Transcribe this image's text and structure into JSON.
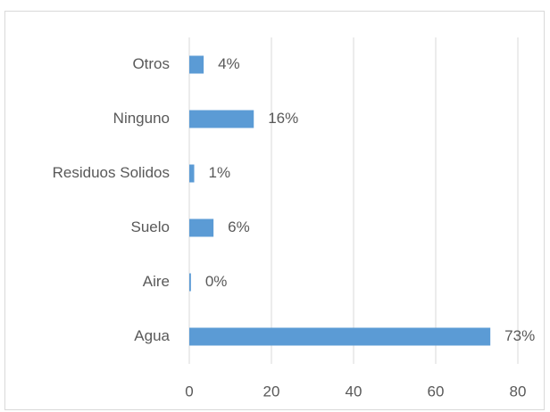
{
  "chart_data": {
    "type": "bar",
    "orientation": "horizontal",
    "categories": [
      "Otros",
      "Ninguno",
      "Residuos Solidos",
      "Suelo",
      "Aire",
      "Agua"
    ],
    "values": [
      3.5,
      15.7,
      1.2,
      5.9,
      0.4,
      73.3
    ],
    "value_labels": [
      "4%",
      "16%",
      "1%",
      "6%",
      "0%",
      "73%"
    ],
    "color": "#5b9bd5",
    "xlim": [
      0,
      80
    ],
    "xticks": [
      0,
      20,
      40,
      60,
      80
    ],
    "grid": true
  }
}
